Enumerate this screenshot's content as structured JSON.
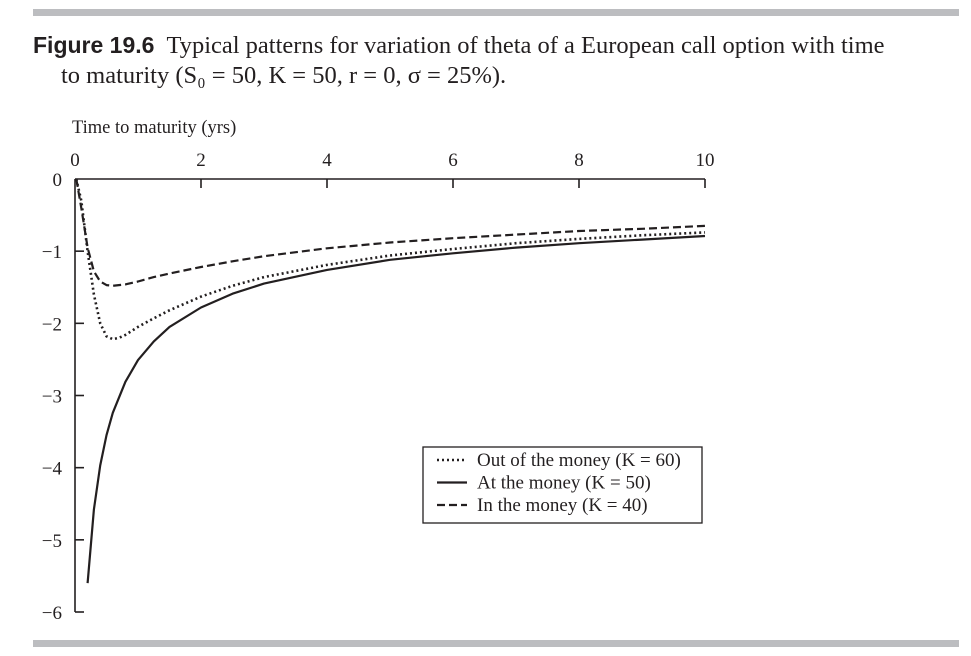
{
  "figure": {
    "label": "Figure 19.6",
    "title_line1": "Typical patterns for variation of theta of a European call option with time",
    "title_line2": "to maturity (S₀ = 50, K = 50, r = 0, σ = 25%)."
  },
  "chart_data": {
    "type": "line",
    "title": "Typical patterns for variation of theta of a European call option with time to maturity (S₀ = 50, K = 50, r = 0, σ = 25%).",
    "xlabel": "Time to maturity (yrs)",
    "ylabel": "",
    "xlim": [
      0,
      10
    ],
    "ylim": [
      -6,
      0
    ],
    "x_axis_position": "top",
    "x_ticks": [
      "0",
      "2",
      "4",
      "6",
      "8",
      "10"
    ],
    "y_ticks": [
      "0",
      "−1",
      "−2",
      "−3",
      "−4",
      "−5",
      "−6"
    ],
    "grid": false,
    "legend_position": "bottom-right",
    "series": [
      {
        "name": "Out of the money (K = 60)",
        "line_style": "dotted",
        "x": [
          0.02,
          0.1,
          0.2,
          0.3,
          0.4,
          0.5,
          0.6,
          0.7,
          0.8,
          1.0,
          1.25,
          1.5,
          2,
          2.5,
          3,
          4,
          5,
          6,
          7,
          8,
          9,
          10
        ],
        "y": [
          0.0,
          -0.3,
          -1.0,
          -1.6,
          -2.0,
          -2.18,
          -2.22,
          -2.2,
          -2.16,
          -2.05,
          -1.93,
          -1.82,
          -1.63,
          -1.48,
          -1.36,
          -1.19,
          -1.06,
          -0.97,
          -0.89,
          -0.83,
          -0.78,
          -0.74
        ]
      },
      {
        "name": "At the money (K = 50)",
        "line_style": "solid",
        "x": [
          0.2,
          0.3,
          0.4,
          0.5,
          0.6,
          0.8,
          1.0,
          1.25,
          1.5,
          2,
          2.5,
          3,
          4,
          5,
          6,
          7,
          8,
          9,
          10
        ],
        "y": [
          -5.6,
          -4.58,
          -3.97,
          -3.55,
          -3.24,
          -2.81,
          -2.51,
          -2.25,
          -2.05,
          -1.78,
          -1.59,
          -1.45,
          -1.26,
          -1.12,
          -1.03,
          -0.95,
          -0.89,
          -0.84,
          -0.79
        ]
      },
      {
        "name": "In the money (K = 40)",
        "line_style": "dashed",
        "x": [
          0.02,
          0.1,
          0.2,
          0.3,
          0.4,
          0.5,
          0.6,
          0.8,
          1.0,
          1.25,
          1.5,
          2,
          2.5,
          3,
          4,
          5,
          6,
          7,
          8,
          9,
          10
        ],
        "y": [
          0.0,
          -0.4,
          -0.95,
          -1.28,
          -1.42,
          -1.47,
          -1.48,
          -1.46,
          -1.42,
          -1.36,
          -1.31,
          -1.22,
          -1.14,
          -1.07,
          -0.96,
          -0.88,
          -0.82,
          -0.77,
          -0.72,
          -0.69,
          -0.65
        ]
      }
    ]
  }
}
